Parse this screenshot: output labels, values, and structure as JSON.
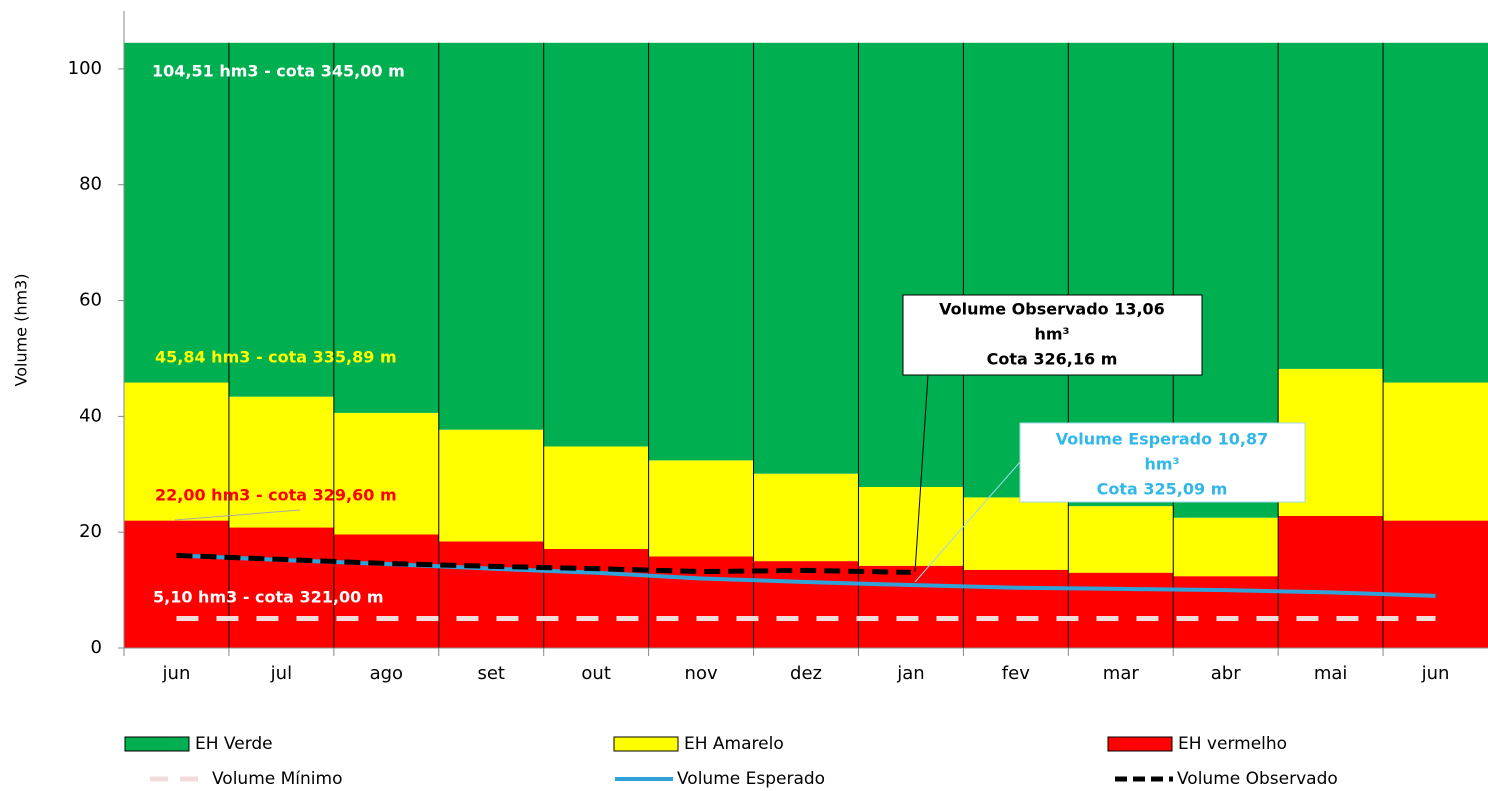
{
  "chart_data": {
    "type": "bar",
    "stacked": true,
    "y_label": "Volume (hm3)",
    "categories": [
      "jun",
      "jul",
      "ago",
      "set",
      "out",
      "nov",
      "dez",
      "jan",
      "fev",
      "mar",
      "abr",
      "mai",
      "jun"
    ],
    "ylim": [
      0,
      110
    ],
    "yticks": [
      0,
      20,
      40,
      60,
      80,
      100
    ],
    "series": [
      {
        "name": "EH vermelho",
        "type": "bar",
        "color": "#ff0000",
        "values": [
          22,
          20.8,
          19.6,
          18.4,
          17.1,
          15.8,
          15,
          14.2,
          13.5,
          13,
          12.4,
          22.8,
          22
        ]
      },
      {
        "name": "EH Amarelo",
        "type": "bar",
        "color": "#ffff00",
        "values": [
          23.84,
          22.6,
          21,
          19.3,
          17.7,
          16.6,
          15.1,
          13.6,
          12.5,
          11.5,
          10.1,
          25.4,
          23.84
        ]
      },
      {
        "name": "EH Verde",
        "type": "bar",
        "color": "#00b050",
        "values": [
          58.67,
          61.11,
          63.91,
          66.81,
          69.71,
          72.11,
          74.41,
          76.71,
          78.51,
          80.01,
          82.01,
          56.31,
          58.67
        ]
      },
      {
        "name": "Volume Mínimo",
        "type": "line",
        "style": "dashed",
        "color": "#f2dcdb",
        "values": [
          5.1,
          5.1,
          5.1,
          5.1,
          5.1,
          5.1,
          5.1,
          5.1,
          5.1,
          5.1,
          5.1,
          5.1,
          5.1
        ]
      },
      {
        "name": "Volume Esperado",
        "type": "line",
        "style": "solid",
        "color": "#31a2d8",
        "values": [
          16,
          15.2,
          14.5,
          13.7,
          13.0,
          12.0,
          11.4,
          10.87,
          10.4,
          10.2,
          10.0,
          9.6,
          9.0
        ]
      },
      {
        "name": "Volume Observado",
        "type": "line",
        "style": "dashed",
        "color": "#000000",
        "values": [
          16,
          15.3,
          14.6,
          14.1,
          13.7,
          13.2,
          13.4,
          13.06,
          null,
          null,
          null,
          null,
          null
        ]
      }
    ],
    "annotations": [
      {
        "lines": [
          "104,51 hm3 - cota 345,00  m"
        ],
        "color": "#ffffff"
      },
      {
        "lines": [
          "45,84 hm3 - cota 335,89 m"
        ],
        "color": "#ffff00"
      },
      {
        "lines": [
          "22,00 hm3 - cota 329,60  m"
        ],
        "color": "#ff0000"
      },
      {
        "lines": [
          "5,10 hm3 - cota 321,00  m"
        ],
        "color": "#ffffff"
      },
      {
        "lines": [
          "Volume Observado 13,06",
          "hm³",
          "Cota 326,16  m"
        ],
        "color": "#000000"
      },
      {
        "lines": [
          "Volume Esperado 10,87",
          "hm³",
          "Cota 325,09  m"
        ],
        "color": "#31b7e8"
      }
    ]
  }
}
